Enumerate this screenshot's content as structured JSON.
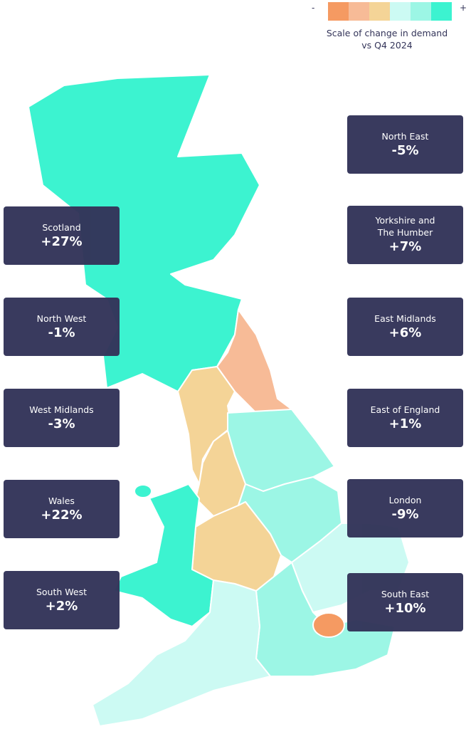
{
  "legend": {
    "minus": "-",
    "plus": "+",
    "caption": "Scale of change in demand vs Q4 2024",
    "colors": [
      "#F59A62",
      "#F7BB97",
      "#F4D497",
      "#CCFAF3",
      "#9CF6E5",
      "#3CF3D0"
    ]
  },
  "card_color": "#333459",
  "regions": [
    {
      "name": "North East",
      "value": "-5%",
      "color": "#F7BB97"
    },
    {
      "name": "Scotland",
      "value": "+27%",
      "color": "#3CF3D0"
    },
    {
      "name": "Yorkshire and The Humber",
      "value": "+7%",
      "color": "#9CF6E5"
    },
    {
      "name": "North West",
      "value": "-1%",
      "color": "#F4D497"
    },
    {
      "name": "East Midlands",
      "value": "+6%",
      "color": "#9CF6E5"
    },
    {
      "name": "West Midlands",
      "value": "-3%",
      "color": "#F4D497"
    },
    {
      "name": "East of England",
      "value": "+1%",
      "color": "#CCFAF3"
    },
    {
      "name": "Wales",
      "value": "+22%",
      "color": "#3CF3D0"
    },
    {
      "name": "London",
      "value": "-9%",
      "color": "#F59A62"
    },
    {
      "name": "South West",
      "value": "+2%",
      "color": "#CCFAF3"
    },
    {
      "name": "South East",
      "value": "+10%",
      "color": "#9CF6E5"
    }
  ]
}
